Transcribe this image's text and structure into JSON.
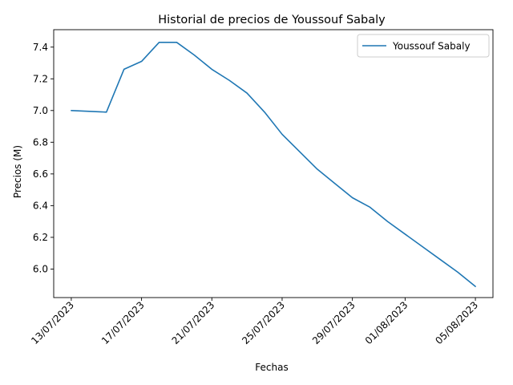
{
  "chart_data": {
    "type": "line",
    "title": "Historial de precios de Youssouf Sabaly",
    "xlabel": "Fechas",
    "ylabel": "Precios (M)",
    "x_tick_labels": [
      "13/07/2023",
      "17/07/2023",
      "21/07/2023",
      "25/07/2023",
      "29/07/2023",
      "01/08/2023",
      "05/08/2023"
    ],
    "x_tick_dates": [
      "2023-07-13",
      "2023-07-17",
      "2023-07-21",
      "2023-07-25",
      "2023-07-29",
      "2023-08-01",
      "2023-08-05"
    ],
    "y_ticks": [
      6.0,
      6.2,
      6.4,
      6.6,
      6.8,
      7.0,
      7.2,
      7.4
    ],
    "y_tick_labels": [
      "6.0",
      "6.2",
      "6.4",
      "6.6",
      "6.8",
      "7.0",
      "7.2",
      "7.4"
    ],
    "xlim": [
      "2023-07-12",
      "2023-08-06"
    ],
    "ylim": [
      5.82,
      7.51
    ],
    "grid": false,
    "legend_position": "top-right",
    "series": [
      {
        "name": "Youssouf Sabaly",
        "color": "#1f77b4",
        "x": [
          "2023-07-13",
          "2023-07-15",
          "2023-07-16",
          "2023-07-17",
          "2023-07-18",
          "2023-07-19",
          "2023-07-20",
          "2023-07-21",
          "2023-07-22",
          "2023-07-23",
          "2023-07-24",
          "2023-07-25",
          "2023-07-26",
          "2023-07-27",
          "2023-07-28",
          "2023-07-29",
          "2023-07-30",
          "2023-07-31",
          "2023-08-01",
          "2023-08-02",
          "2023-08-03",
          "2023-08-04",
          "2023-08-05"
        ],
        "y": [
          7.0,
          6.99,
          7.26,
          7.31,
          7.43,
          7.43,
          7.35,
          7.26,
          7.19,
          7.11,
          6.99,
          6.85,
          6.74,
          6.63,
          6.54,
          6.45,
          6.39,
          6.3,
          6.22,
          6.14,
          6.06,
          5.98,
          5.89
        ]
      }
    ]
  }
}
